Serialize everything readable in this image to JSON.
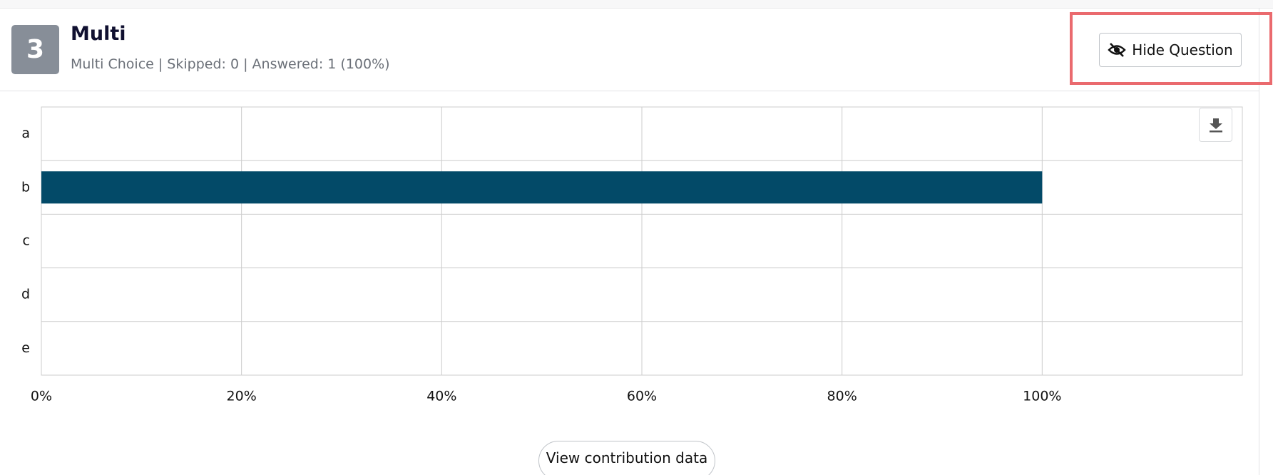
{
  "question": {
    "number": "3",
    "title": "Multi",
    "subtitle": "Multi Choice | Skipped: 0 | Answered: 1 (100%)",
    "hide_button": "Hide Question",
    "view_button": "View contribution data"
  },
  "chart_data": {
    "type": "bar",
    "orientation": "horizontal",
    "categories": [
      "a",
      "b",
      "c",
      "d",
      "e"
    ],
    "values": [
      0,
      100,
      0,
      0,
      0
    ],
    "color": "#034a68",
    "xlim": [
      0,
      120
    ],
    "xticks": [
      {
        "value": 0,
        "label": "0%"
      },
      {
        "value": 20,
        "label": "20%"
      },
      {
        "value": 40,
        "label": "40%"
      },
      {
        "value": 60,
        "label": "60%"
      },
      {
        "value": 80,
        "label": "80%"
      },
      {
        "value": 100,
        "label": "100%"
      }
    ],
    "grid": true
  }
}
